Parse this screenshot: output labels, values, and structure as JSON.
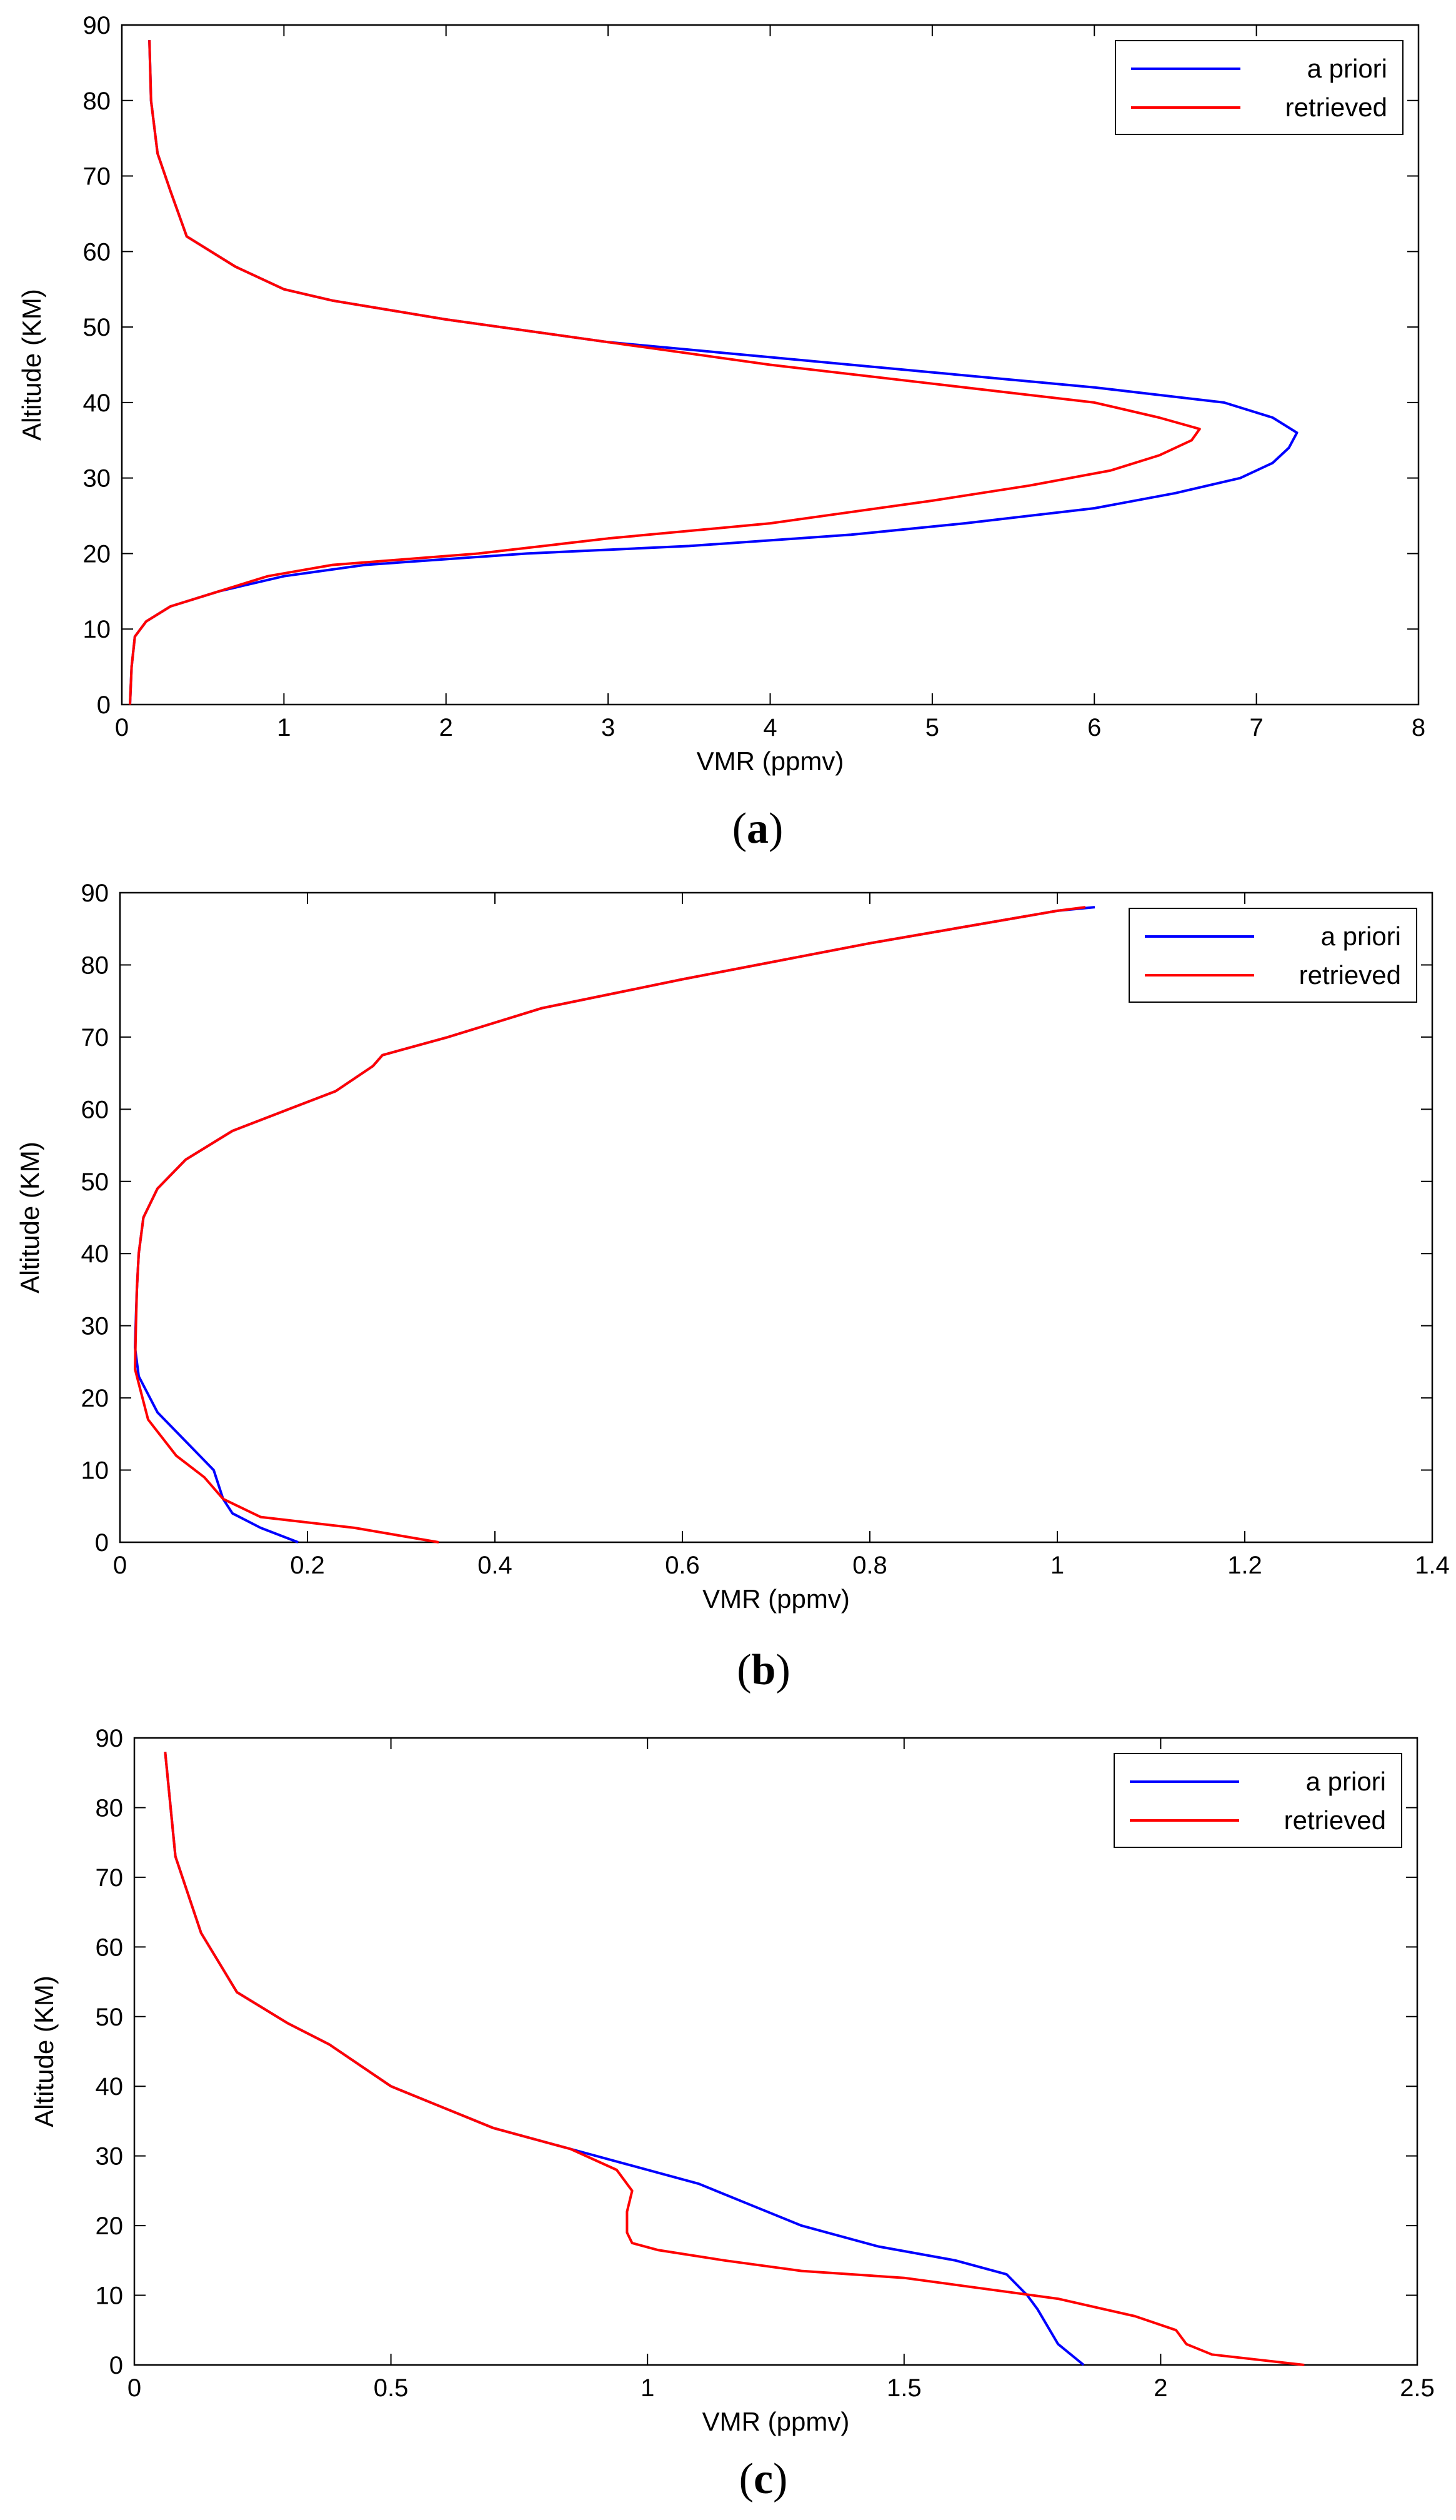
{
  "chart_data": [
    {
      "type": "line",
      "caption": "a",
      "xlabel": "VMR (ppmv)",
      "ylabel": "Altitude (KM)",
      "xlim": [
        0,
        8
      ],
      "ylim": [
        0,
        90
      ],
      "xticks": [
        "0",
        "1",
        "2",
        "3",
        "4",
        "5",
        "6",
        "7",
        "8"
      ],
      "yticks": [
        "0",
        "10",
        "20",
        "30",
        "40",
        "50",
        "60",
        "70",
        "80",
        "90"
      ],
      "legend_position": "top-right",
      "grid": false,
      "series": [
        {
          "name": "a priori",
          "color": "#0000ff",
          "points": [
            [
              0.05,
              0
            ],
            [
              0.06,
              5
            ],
            [
              0.08,
              9
            ],
            [
              0.15,
              11
            ],
            [
              0.3,
              13
            ],
            [
              0.6,
              15
            ],
            [
              1.0,
              17
            ],
            [
              1.5,
              18.5
            ],
            [
              2.5,
              20
            ],
            [
              3.5,
              21
            ],
            [
              4.5,
              22.5
            ],
            [
              5.2,
              24
            ],
            [
              6.0,
              26
            ],
            [
              6.5,
              28
            ],
            [
              6.9,
              30
            ],
            [
              7.1,
              32
            ],
            [
              7.2,
              34
            ],
            [
              7.25,
              36
            ],
            [
              7.1,
              38
            ],
            [
              6.8,
              40
            ],
            [
              6.0,
              42
            ],
            [
              5.0,
              44
            ],
            [
              4.0,
              46
            ],
            [
              3.0,
              48
            ],
            [
              2.0,
              51
            ],
            [
              1.3,
              53.5
            ],
            [
              1.0,
              55
            ],
            [
              0.7,
              58
            ],
            [
              0.4,
              62
            ],
            [
              0.3,
              68
            ],
            [
              0.22,
              73
            ],
            [
              0.18,
              80
            ],
            [
              0.17,
              88
            ]
          ]
        },
        {
          "name": "retrieved",
          "color": "#ff0000",
          "points": [
            [
              0.05,
              0
            ],
            [
              0.06,
              5
            ],
            [
              0.08,
              9
            ],
            [
              0.15,
              11
            ],
            [
              0.3,
              13
            ],
            [
              0.6,
              15
            ],
            [
              0.9,
              17
            ],
            [
              1.3,
              18.5
            ],
            [
              2.2,
              20
            ],
            [
              3.0,
              22
            ],
            [
              4.0,
              24
            ],
            [
              5.0,
              27
            ],
            [
              5.6,
              29
            ],
            [
              6.1,
              31
            ],
            [
              6.4,
              33
            ],
            [
              6.6,
              35
            ],
            [
              6.65,
              36.5
            ],
            [
              6.4,
              38
            ],
            [
              6.0,
              40
            ],
            [
              5.0,
              42.5
            ],
            [
              4.0,
              45
            ],
            [
              3.0,
              48
            ],
            [
              2.0,
              51
            ],
            [
              1.3,
              53.5
            ],
            [
              1.0,
              55
            ],
            [
              0.7,
              58
            ],
            [
              0.4,
              62
            ],
            [
              0.3,
              68
            ],
            [
              0.22,
              73
            ],
            [
              0.18,
              80
            ],
            [
              0.17,
              88
            ]
          ]
        }
      ]
    },
    {
      "type": "line",
      "caption": "b",
      "xlabel": "VMR (ppmv)",
      "ylabel": "Altitude (KM)",
      "xlim": [
        0,
        1.4
      ],
      "ylim": [
        0,
        90
      ],
      "xticks": [
        "0",
        "0.2",
        "0.4",
        "0.6",
        "0.8",
        "1",
        "1.2",
        "1.4"
      ],
      "yticks": [
        "0",
        "10",
        "20",
        "30",
        "40",
        "50",
        "60",
        "70",
        "80",
        "90"
      ],
      "legend_position": "top-right",
      "grid": false,
      "series": [
        {
          "name": "a priori",
          "color": "#0000ff",
          "points": [
            [
              0.19,
              0
            ],
            [
              0.15,
              2
            ],
            [
              0.12,
              4
            ],
            [
              0.11,
              6
            ],
            [
              0.1,
              10
            ],
            [
              0.07,
              14
            ],
            [
              0.04,
              18
            ],
            [
              0.02,
              23
            ],
            [
              0.016,
              27
            ],
            [
              0.018,
              35
            ],
            [
              0.02,
              40
            ],
            [
              0.025,
              45
            ],
            [
              0.04,
              49
            ],
            [
              0.07,
              53
            ],
            [
              0.12,
              57
            ],
            [
              0.18,
              60
            ],
            [
              0.23,
              62.5
            ],
            [
              0.27,
              66
            ],
            [
              0.28,
              67.5
            ],
            [
              0.35,
              70
            ],
            [
              0.45,
              74
            ],
            [
              0.6,
              78
            ],
            [
              0.8,
              83
            ],
            [
              1.0,
              87.5
            ],
            [
              1.04,
              88
            ]
          ]
        },
        {
          "name": "retrieved",
          "color": "#ff0000",
          "points": [
            [
              0.34,
              0
            ],
            [
              0.25,
              2
            ],
            [
              0.15,
              3.5
            ],
            [
              0.11,
              6
            ],
            [
              0.09,
              9
            ],
            [
              0.06,
              12
            ],
            [
              0.03,
              17
            ],
            [
              0.016,
              24
            ],
            [
              0.017,
              30
            ],
            [
              0.018,
              35
            ],
            [
              0.02,
              40
            ],
            [
              0.025,
              45
            ],
            [
              0.04,
              49
            ],
            [
              0.07,
              53
            ],
            [
              0.12,
              57
            ],
            [
              0.18,
              60
            ],
            [
              0.23,
              62.5
            ],
            [
              0.27,
              66
            ],
            [
              0.28,
              67.5
            ],
            [
              0.35,
              70
            ],
            [
              0.45,
              74
            ],
            [
              0.6,
              78
            ],
            [
              0.8,
              83
            ],
            [
              1.0,
              87.5
            ],
            [
              1.03,
              88
            ]
          ]
        }
      ]
    },
    {
      "type": "line",
      "caption": "c",
      "xlabel": "VMR (ppmv)",
      "ylabel": "Altitude (KM)",
      "xlim": [
        0,
        2.5
      ],
      "ylim": [
        0,
        90
      ],
      "xticks": [
        "0",
        "0.5",
        "1",
        "1.5",
        "2",
        "2.5"
      ],
      "yticks": [
        "0",
        "10",
        "20",
        "30",
        "40",
        "50",
        "60",
        "70",
        "80",
        "90"
      ],
      "legend_position": "top-right",
      "grid": false,
      "series": [
        {
          "name": "a priori",
          "color": "#0000ff",
          "points": [
            [
              1.85,
              0
            ],
            [
              1.8,
              3
            ],
            [
              1.76,
              8
            ],
            [
              1.74,
              10
            ],
            [
              1.7,
              13
            ],
            [
              1.6,
              15
            ],
            [
              1.45,
              17
            ],
            [
              1.3,
              20
            ],
            [
              1.2,
              23
            ],
            [
              1.1,
              26
            ],
            [
              0.95,
              29
            ],
            [
              0.85,
              31
            ],
            [
              0.7,
              34
            ],
            [
              0.6,
              37
            ],
            [
              0.5,
              40
            ],
            [
              0.38,
              46
            ],
            [
              0.3,
              49
            ],
            [
              0.2,
              53.5
            ],
            [
              0.13,
              62
            ],
            [
              0.08,
              73
            ],
            [
              0.06,
              88
            ]
          ]
        },
        {
          "name": "retrieved",
          "color": "#ff0000",
          "points": [
            [
              2.28,
              0
            ],
            [
              2.1,
              1.5
            ],
            [
              2.05,
              3
            ],
            [
              2.03,
              5
            ],
            [
              1.95,
              7
            ],
            [
              1.8,
              9.5
            ],
            [
              1.6,
              11.5
            ],
            [
              1.5,
              12.5
            ],
            [
              1.3,
              13.5
            ],
            [
              1.15,
              15
            ],
            [
              1.02,
              16.5
            ],
            [
              0.97,
              17.5
            ],
            [
              0.96,
              19
            ],
            [
              0.96,
              22
            ],
            [
              0.97,
              25
            ],
            [
              0.94,
              28
            ],
            [
              0.85,
              31
            ],
            [
              0.7,
              34
            ],
            [
              0.6,
              37
            ],
            [
              0.5,
              40
            ],
            [
              0.38,
              46
            ],
            [
              0.3,
              49
            ],
            [
              0.2,
              53.5
            ],
            [
              0.13,
              62
            ],
            [
              0.08,
              73
            ],
            [
              0.06,
              88
            ]
          ]
        }
      ]
    }
  ]
}
